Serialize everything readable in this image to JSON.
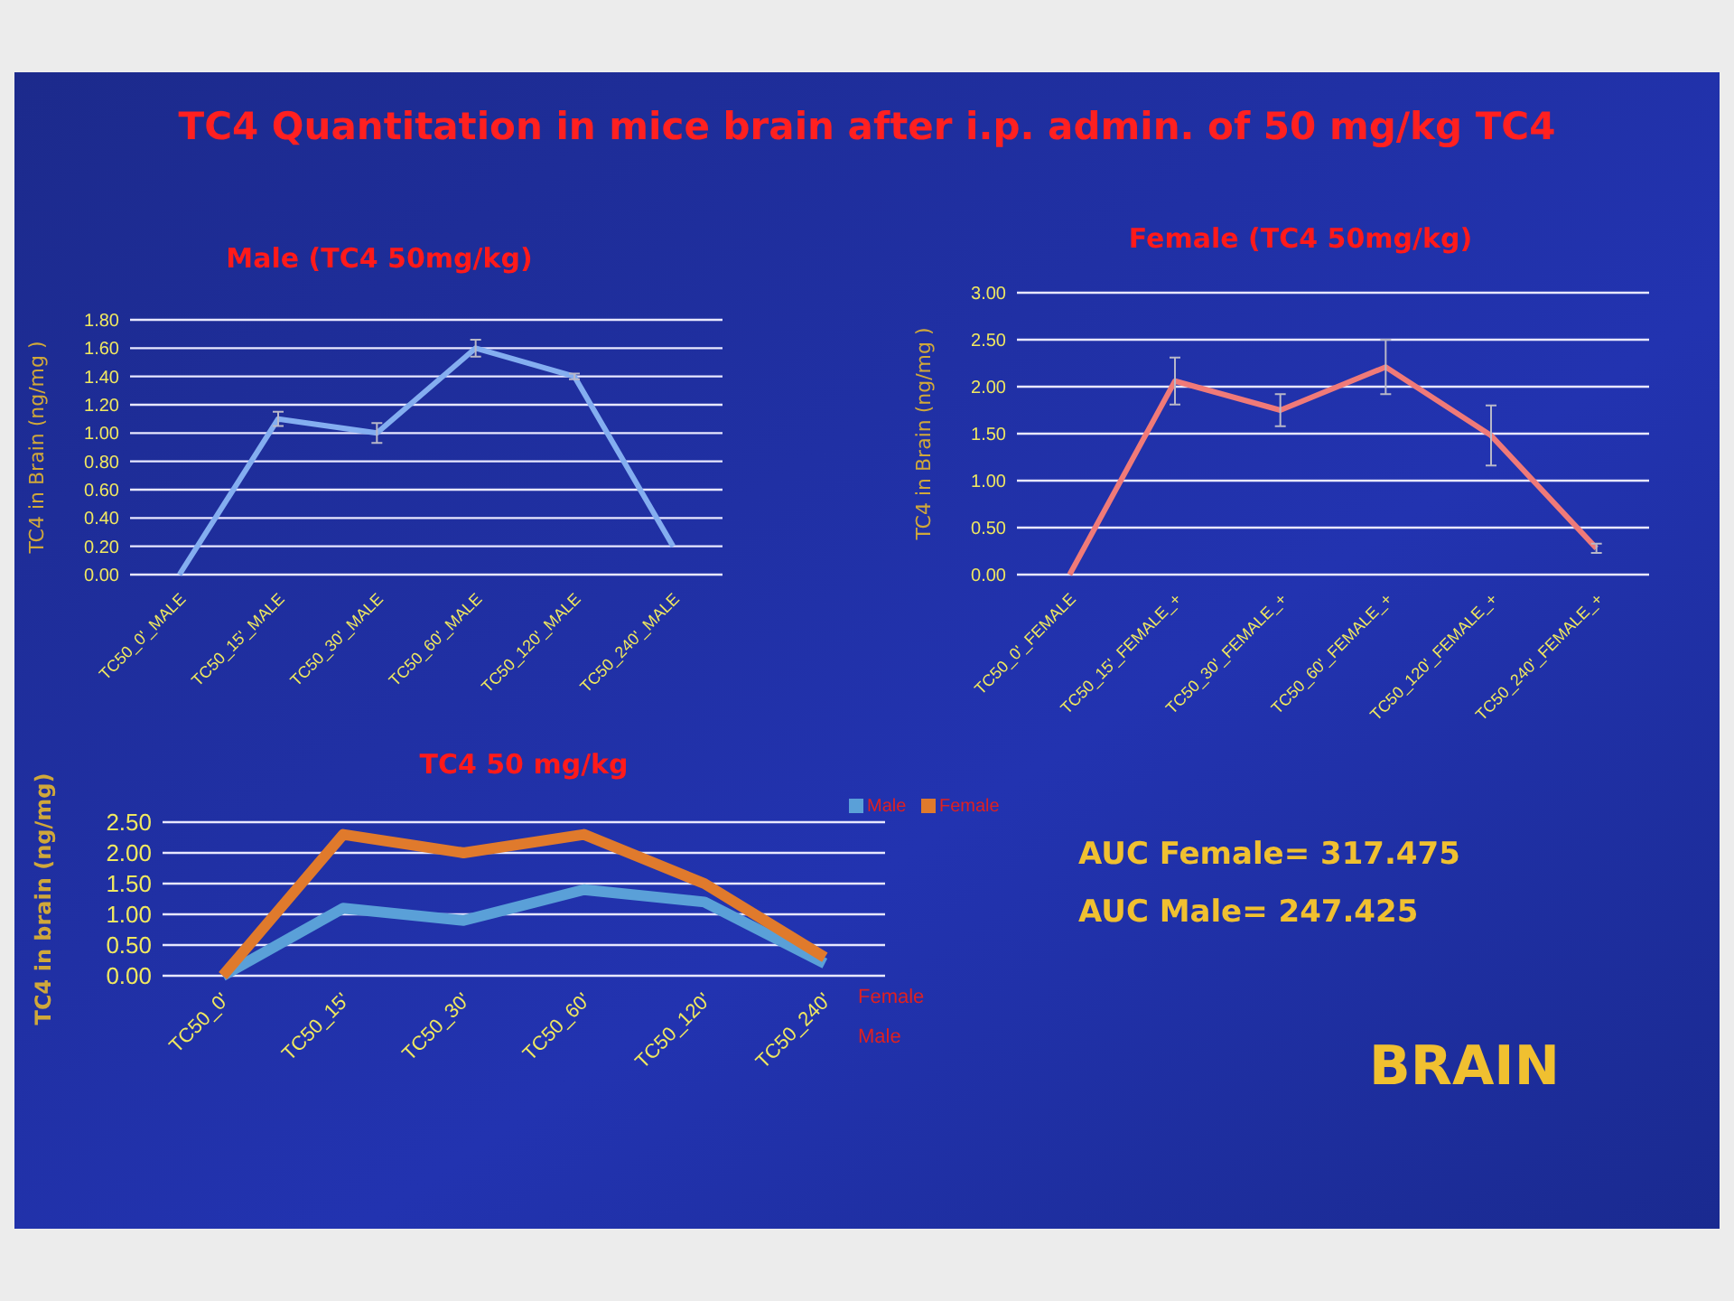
{
  "chart_data": [
    {
      "type": "line",
      "title": "Male (TC4 50mg/kg)",
      "ylabel": "TC4 in Brain (ng/mg )",
      "categories": [
        "TC50_0'_MALE",
        "TC50_15'_MALE",
        "TC50_30'_MALE",
        "TC50_60'_MALE",
        "TC50_120'_MALE",
        "TC50_240'_MALE"
      ],
      "series": [
        {
          "color": "#84aef0",
          "values": [
            0,
            1.1,
            1.0,
            1.6,
            1.4,
            0.2
          ],
          "errors": [
            null,
            0.05,
            0.07,
            0.06,
            0.02,
            null
          ]
        }
      ],
      "ylim": [
        0,
        1.8
      ],
      "yticks": [
        {
          "value": 0,
          "label": "0.00"
        },
        {
          "value": 0.2,
          "label": "0.20"
        },
        {
          "value": 0.4,
          "label": "0.40"
        },
        {
          "value": 0.6,
          "label": "0.60"
        },
        {
          "value": 0.8,
          "label": "0.80"
        },
        {
          "value": 1,
          "label": "1.00"
        },
        {
          "value": 1.2,
          "label": "1.20"
        },
        {
          "value": 1.4,
          "label": "1.40"
        },
        {
          "value": 1.6,
          "label": "1.60"
        },
        {
          "value": 1.8,
          "label": "1.80"
        }
      ],
      "grid": "y",
      "legend": false,
      "marker": "none"
    },
    {
      "type": "line",
      "title": "Female (TC4 50mg/kg)",
      "ylabel": "TC4 in Brain (ng/mg )",
      "categories": [
        "TC50_0'_FEMALE",
        "TC50_15'_FEMALE_+",
        "TC50_30'_FEMALE_+",
        "TC50_60'_FEMALE_+",
        "TC50_120'_FEMALE_+",
        "TC50_240'_FEMALE_+"
      ],
      "series": [
        {
          "color": "#f07a78",
          "values": [
            0,
            2.06,
            1.75,
            2.21,
            1.48,
            0.28
          ],
          "errors": [
            null,
            0.25,
            0.17,
            0.29,
            0.32,
            0.05
          ]
        }
      ],
      "ylim": [
        0,
        3
      ],
      "yticks": [
        {
          "value": 0,
          "label": "0.00"
        },
        {
          "value": 0.5,
          "label": "0.50"
        },
        {
          "value": 1,
          "label": "1.00"
        },
        {
          "value": 1.5,
          "label": "1.50"
        },
        {
          "value": 2,
          "label": "2.00"
        },
        {
          "value": 2.5,
          "label": "2.50"
        },
        {
          "value": 3,
          "label": "3.00"
        }
      ],
      "grid": "y",
      "legend": false,
      "marker": "none"
    },
    {
      "type": "line",
      "title": "TC4 50 mg/kg",
      "ylabel": "TC4 in brain (ng/mg)",
      "categories": [
        "TC50_0'",
        "TC50_15'",
        "TC50_30'",
        "TC50_60'",
        "TC50_120'",
        "TC50_240'"
      ],
      "series": [
        {
          "name": "Male",
          "color": "#5aa0d8",
          "values": [
            0,
            1.1,
            0.9,
            1.4,
            1.2,
            0.2
          ]
        },
        {
          "name": "Female",
          "color": "#e07a2c",
          "values": [
            0,
            2.3,
            2.0,
            2.3,
            1.5,
            0.3
          ]
        }
      ],
      "ylim": [
        0,
        2.5
      ],
      "yticks": [
        {
          "value": 0,
          "label": "0.00"
        },
        {
          "value": 0.5,
          "label": "0.50"
        },
        {
          "value": 1,
          "label": "1.00"
        },
        {
          "value": 1.5,
          "label": "1.50"
        },
        {
          "value": 2,
          "label": "2.00"
        },
        {
          "value": 2.5,
          "label": "2.50"
        }
      ],
      "grid": "y",
      "legend": "top right",
      "marker": "none"
    },
    {
      "type": "other",
      "title": "TC4 Quantitation in mice brain after i.p. admin. of 50 mg/kg TC4",
      "annotations": [
        "AUC Female= 317.475",
        "AUC Male= 247.425",
        "BRAIN"
      ]
    }
  ]
}
